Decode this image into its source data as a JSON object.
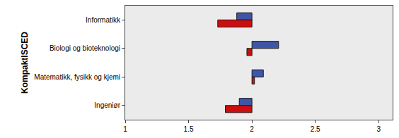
{
  "chart_data": {
    "type": "bar",
    "orientation": "horizontal",
    "y_label": "KompaktISCED",
    "categories": [
      "Informatikk",
      "Biologi og bioteknologi",
      "Matematikk, fysikk og kjemi",
      "Ingeniør"
    ],
    "base": 2,
    "series": [
      {
        "color": "#3f56a8",
        "values": [
          1.88,
          2.21,
          2.09,
          1.9
        ]
      },
      {
        "color": "#cc0e0e",
        "values": [
          1.73,
          1.96,
          2.02,
          1.79
        ]
      }
    ],
    "xlim": [
      1,
      3.11
    ],
    "xticks": [
      1,
      1.5,
      2,
      2.5,
      3
    ],
    "grid": false
  }
}
